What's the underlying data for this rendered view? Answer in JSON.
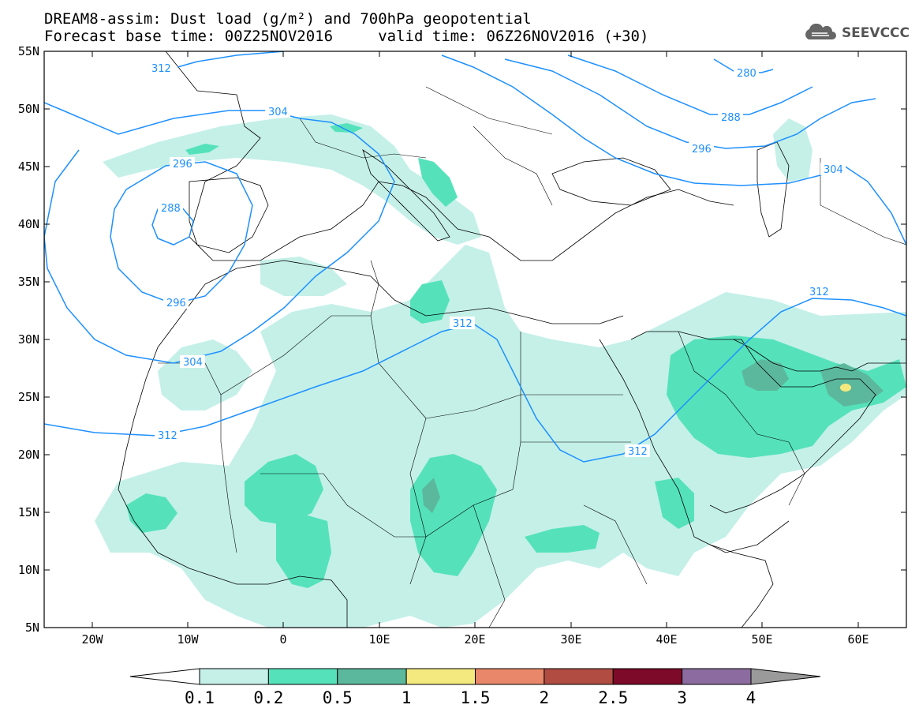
{
  "header": {
    "line1": "DREAM8-assim: Dust load (g/m²) and 700hPa geopotential",
    "line2": "Forecast base time: 00Z25NOV2016     valid time: 06Z26NOV2016 (+30)"
  },
  "logo": {
    "text": "SEEVCCC",
    "icon": "cloud-logo-icon"
  },
  "axes": {
    "lat_labels": [
      "55N",
      "50N",
      "45N",
      "40N",
      "35N",
      "30N",
      "25N",
      "20N",
      "15N",
      "10N",
      "5N"
    ],
    "lon_labels": [
      "20W",
      "10W",
      "0",
      "10E",
      "20E",
      "30E",
      "40E",
      "50E",
      "60E"
    ]
  },
  "contour_labels": [
    "312",
    "304",
    "296",
    "288",
    "280",
    "288",
    "296",
    "304",
    "312",
    "312",
    "304",
    "296",
    "312",
    "312"
  ],
  "colorbar": {
    "ticks": [
      "0.1",
      "0.2",
      "0.5",
      "1",
      "1.5",
      "2",
      "2.5",
      "3",
      "4"
    ],
    "colors": [
      "#ffffff",
      "#c4f0e8",
      "#55e2bb",
      "#5cb89c",
      "#f3e97f",
      "#e9876a",
      "#b04c42",
      "#7c0a28",
      "#8c6ca0",
      "#9a9a9a"
    ]
  },
  "colors": {
    "contour": "#1e90ff",
    "dust_light": "#c4f0e8",
    "dust_mid": "#55e2bb",
    "dust_dark": "#5cb89c",
    "dust_yellow": "#f3e97f"
  }
}
